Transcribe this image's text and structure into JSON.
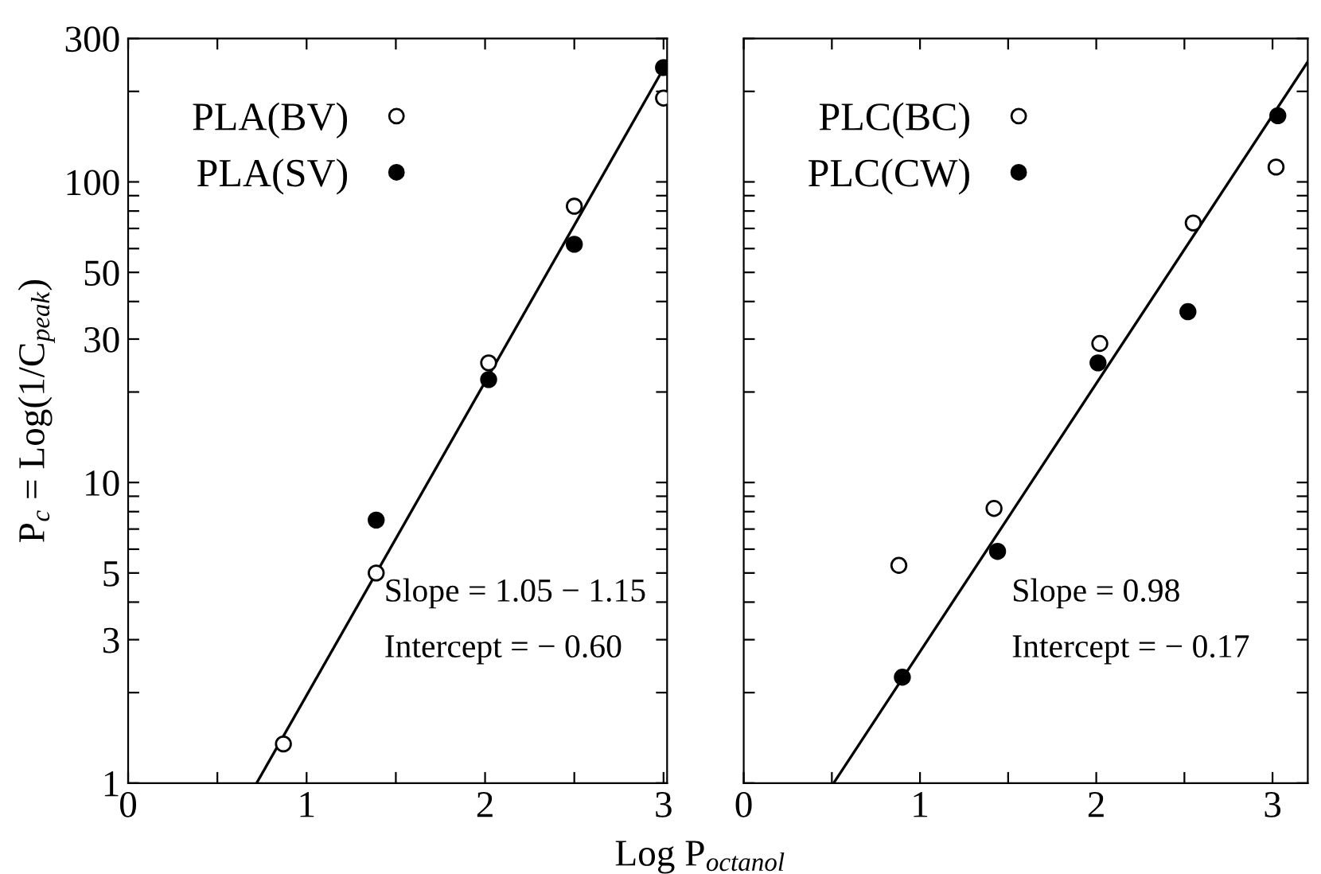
{
  "chart_data": [
    {
      "type": "scatter",
      "ylabel": "P$_{c}$ = Log(1/C$_{peak}$)",
      "xlabel": "Log P$_{octanol}$",
      "log": "y",
      "xlim": [
        0,
        3.02
      ],
      "ylim": [
        1,
        300
      ],
      "xticks": [
        0,
        {
          "value": 0.5,
          "label": null
        },
        1,
        {
          "value": 1.5,
          "label": null
        },
        2,
        {
          "value": 2.5,
          "label": null
        },
        3
      ],
      "yticks": [
        1,
        {
          "value": 2,
          "label": null
        },
        3,
        {
          "value": 4,
          "label": null
        },
        5,
        {
          "value": 6,
          "label": null
        },
        {
          "value": 7,
          "label": null
        },
        {
          "value": 8,
          "label": null
        },
        {
          "value": 9,
          "label": null
        },
        10,
        {
          "value": 20,
          "label": null
        },
        30,
        {
          "value": 40,
          "label": null
        },
        50,
        {
          "value": 60,
          "label": null
        },
        {
          "value": 70,
          "label": null
        },
        {
          "value": 80,
          "label": null
        },
        {
          "value": 90,
          "label": null
        },
        100,
        {
          "value": 200,
          "label": null
        },
        300
      ],
      "legend": "top left",
      "grid": false,
      "series": [
        {
          "name": "PLA(BV)",
          "color": "#000000",
          "marker": "circle",
          "x": [
            0.87,
            1.39,
            2.02,
            2.5,
            3.0
          ],
          "values": [
            1.35,
            5.0,
            25,
            83,
            190
          ]
        },
        {
          "name": "PLA(SV)",
          "color": "#000000",
          "marker": "circle",
          "x": [
            1.39,
            2.02,
            2.5,
            3.0
          ],
          "values": [
            7.5,
            22,
            62,
            240
          ]
        },
        {
          "type": "line",
          "color": "#000000",
          "x": [
            0.72,
            3.02
          ],
          "values": [
            1,
            250
          ]
        }
      ],
      "annotations": [
        "Slope = 1.05 − 1.15",
        "Intercept = − 0.60"
      ]
    },
    {
      "type": "scatter",
      "log": "y",
      "xlim": [
        0,
        3.2
      ],
      "ylim": [
        1,
        300
      ],
      "tick_labels": "x",
      "xticks": [
        0,
        {
          "value": 0.5,
          "label": null
        },
        1,
        {
          "value": 1.5,
          "label": null
        },
        2,
        {
          "value": 2.5,
          "label": null
        },
        3
      ],
      "yticks": [
        1,
        {
          "value": 2,
          "label": null
        },
        3,
        {
          "value": 4,
          "label": null
        },
        5,
        {
          "value": 6,
          "label": null
        },
        {
          "value": 7,
          "label": null
        },
        {
          "value": 8,
          "label": null
        },
        {
          "value": 9,
          "label": null
        },
        10,
        {
          "value": 20,
          "label": null
        },
        30,
        {
          "value": 40,
          "label": null
        },
        50,
        {
          "value": 60,
          "label": null
        },
        {
          "value": 70,
          "label": null
        },
        {
          "value": 80,
          "label": null
        },
        {
          "value": 90,
          "label": null
        },
        100,
        {
          "value": 200,
          "label": null
        },
        300
      ],
      "legend": "top left",
      "grid": false,
      "series": [
        {
          "name": "PLC(BC)",
          "color": "#000000",
          "marker": "circle",
          "x": [
            0.88,
            1.42,
            2.02,
            2.55,
            3.02
          ],
          "values": [
            5.3,
            8.2,
            29,
            73,
            112
          ]
        },
        {
          "name": "PLC(CW)",
          "color": "#000000",
          "marker": "circle",
          "x": [
            0.9,
            1.44,
            2.01,
            2.52,
            3.03
          ],
          "values": [
            2.25,
            5.9,
            25,
            37,
            166
          ]
        },
        {
          "type": "line",
          "color": "#000000",
          "x": [
            0.51,
            3.2
          ],
          "values": [
            1,
            251
          ]
        }
      ],
      "annotations": [
        "Slope = 0.98",
        "Intercept = − 0.17"
      ]
    }
  ]
}
